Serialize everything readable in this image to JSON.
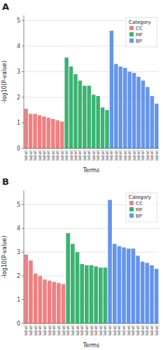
{
  "chart_data": [
    {
      "type": "bar",
      "title": "A",
      "x_label": "Terms",
      "y_label": "-log10(P-value)",
      "categories": [
        "label",
        "label",
        "label",
        "label",
        "label",
        "label",
        "label",
        "label",
        "label",
        "label",
        "label",
        "label",
        "label",
        "label",
        "label",
        "label",
        "label",
        "label",
        "label",
        "label",
        "label",
        "label",
        "label",
        "label",
        "label",
        "label",
        "label",
        "label",
        "label",
        "label"
      ],
      "series": [
        {
          "name": "CC",
          "color": "#F08080",
          "values": [
            1.55,
            1.35,
            1.35,
            1.3,
            1.25,
            1.2,
            1.15,
            1.1,
            1.05,
            null,
            null,
            null,
            null,
            null,
            null,
            null,
            null,
            null,
            null,
            null,
            null,
            null,
            null,
            null,
            null,
            null,
            null,
            null,
            null,
            null
          ]
        },
        {
          "name": "MF",
          "color": "#3CB371",
          "values": [
            null,
            null,
            null,
            null,
            null,
            null,
            null,
            null,
            null,
            3.55,
            3.2,
            2.9,
            2.65,
            2.45,
            2.45,
            2.1,
            2.05,
            1.6,
            1.5,
            null,
            null,
            null,
            null,
            null,
            null,
            null,
            null,
            null,
            null,
            null
          ]
        },
        {
          "name": "BP",
          "color": "#6495ED",
          "values": [
            null,
            null,
            null,
            null,
            null,
            null,
            null,
            null,
            null,
            null,
            null,
            null,
            null,
            null,
            null,
            null,
            null,
            null,
            null,
            4.6,
            3.3,
            3.2,
            3.15,
            3.0,
            2.95,
            2.8,
            2.65,
            2.4,
            2.05,
            1.75
          ]
        }
      ],
      "stacked": true,
      "ylim": [
        0,
        5.2
      ],
      "yticks": [
        0,
        1,
        2,
        3,
        4,
        5
      ],
      "grid": true,
      "legend": "upper right",
      "legend_title": "Category"
    },
    {
      "type": "bar",
      "title": "B",
      "x_label": "Terms",
      "y_label": "-log10(P-value)",
      "categories": [
        "label",
        "label",
        "label",
        "label",
        "label",
        "label",
        "label",
        "label",
        "label",
        "label",
        "label",
        "label",
        "label",
        "label",
        "label",
        "label",
        "label",
        "label",
        "label",
        "label",
        "label",
        "label",
        "label",
        "label",
        "label",
        "label",
        "label",
        "label",
        "label"
      ],
      "series": [
        {
          "name": "CC",
          "color": "#F08080",
          "values": [
            2.9,
            2.65,
            2.1,
            2.0,
            1.85,
            1.8,
            1.75,
            1.7,
            1.65,
            null,
            null,
            null,
            null,
            null,
            null,
            null,
            null,
            null,
            null,
            null,
            null,
            null,
            null,
            null,
            null,
            null,
            null,
            null,
            null
          ]
        },
        {
          "name": "MF",
          "color": "#3CB371",
          "values": [
            null,
            null,
            null,
            null,
            null,
            null,
            null,
            null,
            null,
            3.8,
            3.35,
            3.0,
            2.5,
            2.45,
            2.45,
            2.4,
            2.35,
            2.35,
            null,
            null,
            null,
            null,
            null,
            null,
            null,
            null,
            null,
            null,
            null
          ]
        },
        {
          "name": "BP",
          "color": "#6495ED",
          "values": [
            null,
            null,
            null,
            null,
            null,
            null,
            null,
            null,
            null,
            null,
            null,
            null,
            null,
            null,
            null,
            null,
            null,
            null,
            5.2,
            3.35,
            3.25,
            3.2,
            3.15,
            3.15,
            2.85,
            2.6,
            2.55,
            2.45,
            2.3
          ]
        }
      ],
      "stacked": true,
      "ylim": [
        0,
        5.6
      ],
      "yticks": [
        0,
        1,
        2,
        3,
        4,
        5
      ],
      "grid": true,
      "legend": "upper right",
      "legend_title": "Category"
    }
  ]
}
